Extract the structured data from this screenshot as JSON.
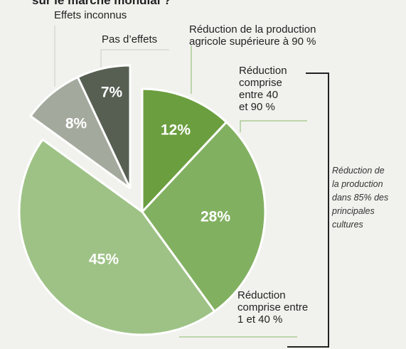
{
  "chart_data": {
    "type": "pie",
    "title": "sur le marché mondial ?",
    "categories": [
      [
        "Réduction de la production",
        "agricole supérieure à 90 %"
      ],
      [
        "Réduction",
        "comprise",
        "entre 40",
        "et 90 %"
      ],
      [
        "Réduction",
        "comprise entre",
        "1 et 40 %"
      ],
      [
        "Effets inconnus"
      ],
      [
        "Pas d’effets"
      ]
    ],
    "values": [
      12,
      28,
      45,
      8,
      7
    ],
    "value_labels": [
      "12%",
      "28%",
      "45%",
      "8%",
      "7%"
    ],
    "colors": [
      "#6b9e3f",
      "#82b061",
      "#9ec286",
      "#a4a99d",
      "#565f52"
    ],
    "exploded": [
      false,
      false,
      false,
      true,
      true
    ],
    "annotation": [
      "Réduction de",
      "la production",
      "dans 85% des",
      "principales",
      "cultures"
    ]
  }
}
